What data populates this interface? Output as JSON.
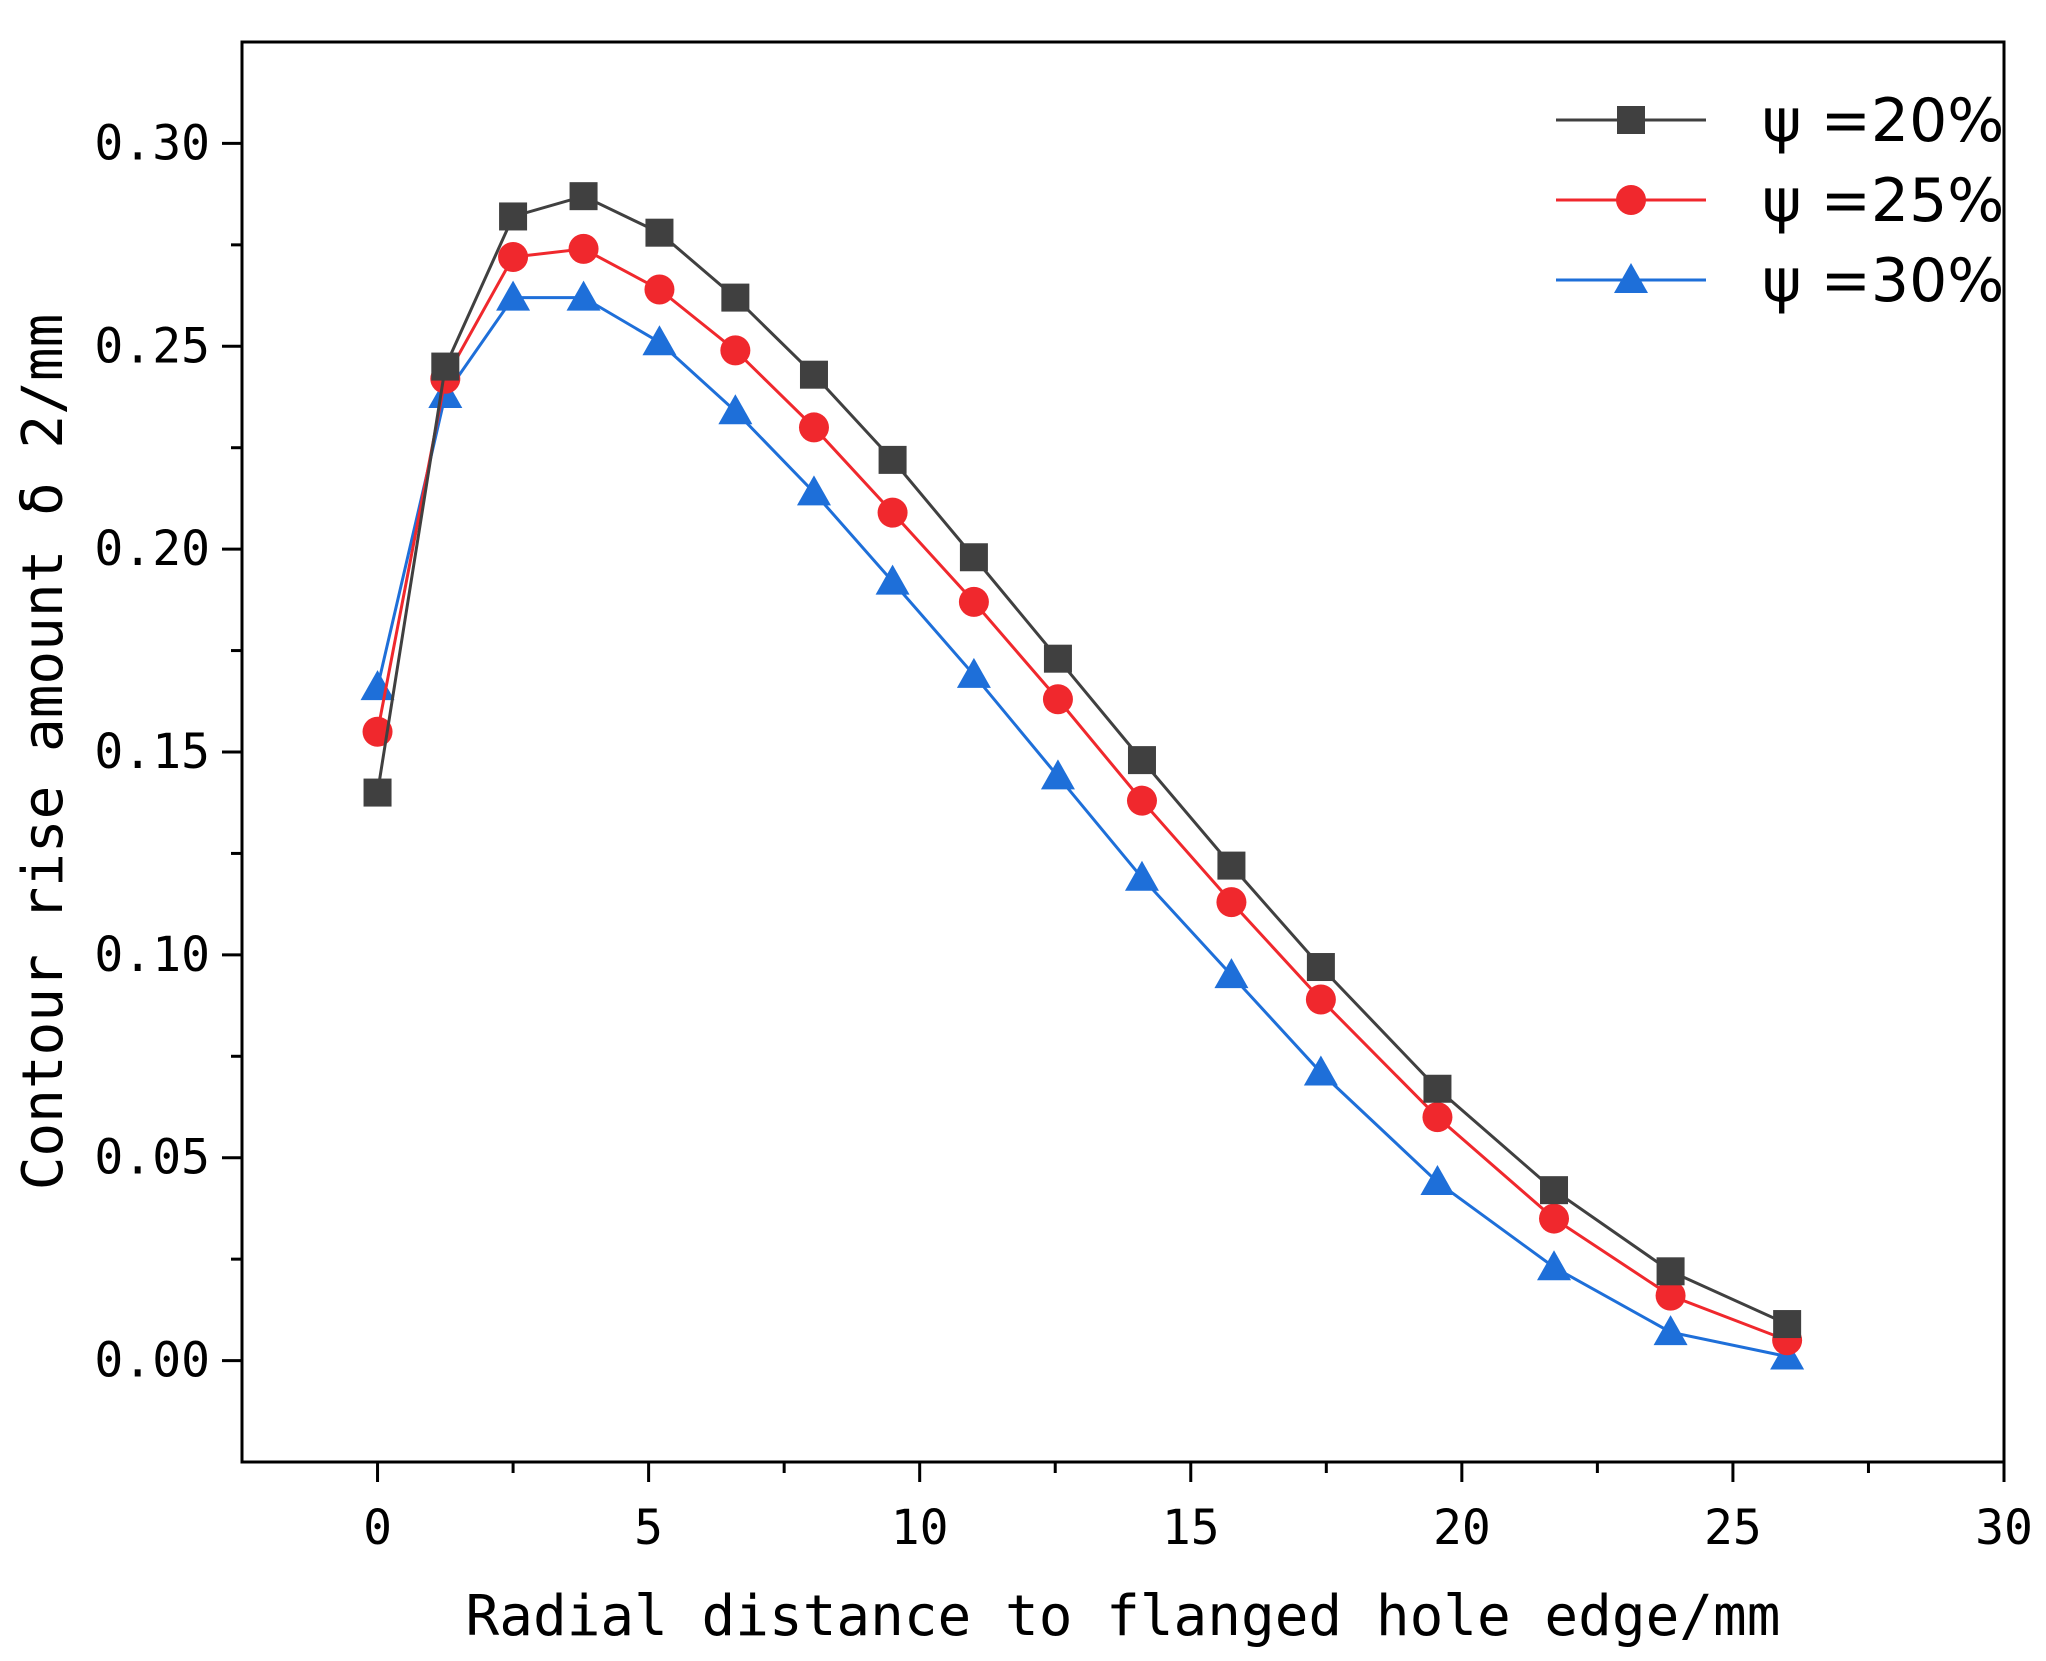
{
  "chart_data": {
    "type": "line",
    "title": "",
    "xlabel": "Radial distance to flanged hole edge/mm",
    "ylabel": "Contour rise amount δ 2/mm",
    "xlim": [
      -2.5,
      30
    ],
    "ylim": [
      -0.025,
      0.325
    ],
    "xticks": [
      0,
      5,
      10,
      15,
      20,
      25,
      30
    ],
    "xtick_labels": [
      "0",
      "5",
      "10",
      "15",
      "20",
      "25",
      "30"
    ],
    "yticks": [
      0.0,
      0.05,
      0.1,
      0.15,
      0.2,
      0.25,
      0.3
    ],
    "ytick_labels": [
      "0.00",
      "0.05",
      "0.10",
      "0.15",
      "0.20",
      "0.25",
      "0.30"
    ],
    "grid": false,
    "legend_position": "top-right",
    "x": [
      0,
      1.25,
      2.5,
      3.8,
      5.2,
      6.6,
      8.05,
      9.5,
      11.0,
      12.55,
      14.1,
      15.75,
      17.4,
      19.55,
      21.7,
      23.85,
      26.0
    ],
    "series": [
      {
        "name": "ψ =20%",
        "color": "#404040",
        "marker": "square",
        "values": [
          0.14,
          0.245,
          0.282,
          0.287,
          0.278,
          0.262,
          0.243,
          0.222,
          0.198,
          0.173,
          0.148,
          0.122,
          0.097,
          0.067,
          0.042,
          0.022,
          0.009
        ]
      },
      {
        "name": "ψ =25%",
        "color": "#f0282d",
        "marker": "circle",
        "values": [
          0.155,
          0.242,
          0.272,
          0.274,
          0.264,
          0.249,
          0.23,
          0.209,
          0.187,
          0.163,
          0.138,
          0.113,
          0.089,
          0.06,
          0.035,
          0.016,
          0.005
        ]
      },
      {
        "name": "ψ =30%",
        "color": "#1e6fd9",
        "marker": "triangle",
        "values": [
          0.166,
          0.238,
          0.262,
          0.262,
          0.251,
          0.234,
          0.214,
          0.192,
          0.169,
          0.144,
          0.119,
          0.095,
          0.071,
          0.044,
          0.023,
          0.007,
          0.001
        ]
      }
    ]
  }
}
